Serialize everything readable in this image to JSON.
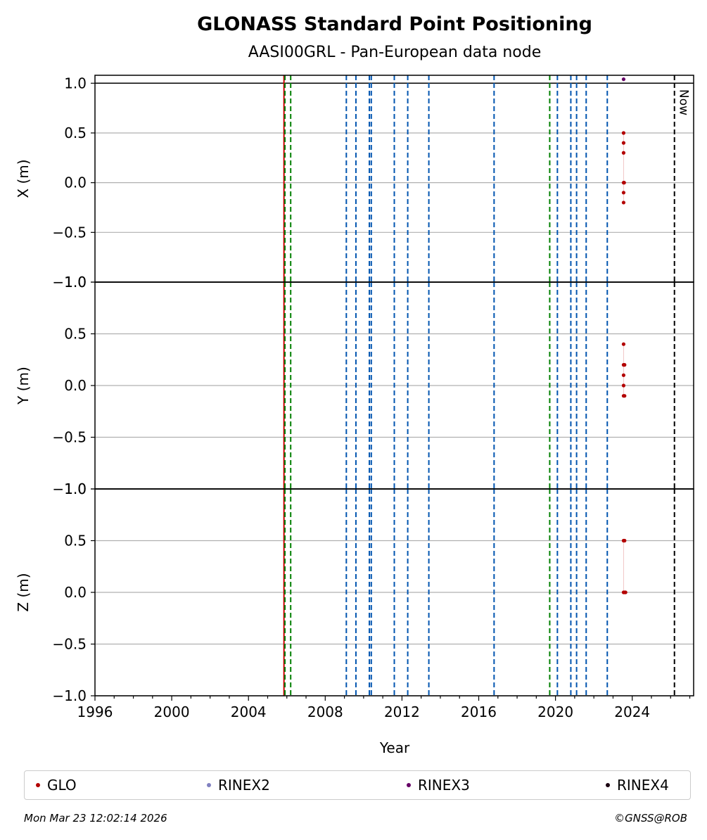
{
  "chart_data": {
    "type": "scatter",
    "title": "GLONASS Standard Point Positioning",
    "subtitle": "AASI00GRL - Pan-European data node",
    "xlabel": "Year",
    "xlim": [
      1996,
      2027.2
    ],
    "x_ticks": [
      "1996",
      "2000",
      "2004",
      "2008",
      "2012",
      "2016",
      "2020",
      "2024"
    ],
    "panels": [
      {
        "ylabel": "X (m)",
        "ylim": [
          -1.0,
          1.08
        ],
        "y_ticks": [
          "1.0",
          "0.5",
          "0.0",
          "−0.5",
          "−1.0"
        ],
        "series": [
          {
            "name": "GLO",
            "points": [
              [
                2023.55,
                0.5
              ],
              [
                2023.55,
                0.4
              ],
              [
                2023.55,
                0.3
              ],
              [
                2023.55,
                0.0
              ],
              [
                2023.58,
                0.0
              ],
              [
                2023.55,
                -0.1
              ],
              [
                2023.55,
                -0.2
              ]
            ]
          },
          {
            "name": "RINEX3",
            "points": [
              [
                2023.55,
                1.04
              ]
            ]
          }
        ]
      },
      {
        "ylabel": "Y (m)",
        "ylim": [
          -1.0,
          1.0
        ],
        "y_ticks": [
          "1.0",
          "0.5",
          "0.0",
          "−0.5",
          "−1.0"
        ],
        "series": [
          {
            "name": "GLO",
            "points": [
              [
                2023.55,
                0.4
              ],
              [
                2023.55,
                0.2
              ],
              [
                2023.6,
                0.2
              ],
              [
                2023.55,
                0.1
              ],
              [
                2023.55,
                0.0
              ],
              [
                2023.55,
                -0.1
              ],
              [
                2023.6,
                -0.1
              ]
            ]
          }
        ]
      },
      {
        "ylabel": "Z (m)",
        "ylim": [
          -1.0,
          1.0
        ],
        "y_ticks": [
          "1.0",
          "0.5",
          "0.0",
          "−0.5",
          "−1.0"
        ],
        "series": [
          {
            "name": "GLO",
            "points": [
              [
                2023.55,
                0.5
              ],
              [
                2023.6,
                0.5
              ],
              [
                2023.55,
                0.0
              ],
              [
                2023.6,
                0.0
              ],
              [
                2023.65,
                0.0
              ]
            ]
          }
        ]
      }
    ],
    "event_lines": [
      {
        "x": 2005.85,
        "color": "#cc0000",
        "style": "solid"
      },
      {
        "x": 2005.9,
        "color": "#008000",
        "style": "dashed"
      },
      {
        "x": 2006.2,
        "color": "#008000",
        "style": "dashed"
      },
      {
        "x": 2009.1,
        "color": "#0055b0",
        "style": "dashed"
      },
      {
        "x": 2009.6,
        "color": "#0055b0",
        "style": "dashed"
      },
      {
        "x": 2010.3,
        "color": "#0055b0",
        "style": "dashed"
      },
      {
        "x": 2010.4,
        "color": "#0055b0",
        "style": "dashed"
      },
      {
        "x": 2011.6,
        "color": "#0055b0",
        "style": "dashed"
      },
      {
        "x": 2012.3,
        "color": "#0055b0",
        "style": "dashed"
      },
      {
        "x": 2013.4,
        "color": "#0055b0",
        "style": "dashed"
      },
      {
        "x": 2016.8,
        "color": "#0055b0",
        "style": "dashed"
      },
      {
        "x": 2019.7,
        "color": "#008000",
        "style": "dashed"
      },
      {
        "x": 2020.1,
        "color": "#0055b0",
        "style": "dashed"
      },
      {
        "x": 2020.8,
        "color": "#0055b0",
        "style": "dashed"
      },
      {
        "x": 2021.1,
        "color": "#0055b0",
        "style": "dashed"
      },
      {
        "x": 2021.6,
        "color": "#0055b0",
        "style": "dashed"
      },
      {
        "x": 2022.7,
        "color": "#0055b0",
        "style": "dashed"
      },
      {
        "x": 2026.2,
        "color": "#000000",
        "style": "dashed"
      }
    ],
    "now_label": "Now",
    "legend": [
      {
        "name": "GLO",
        "color": "#b30000"
      },
      {
        "name": "RINEX2",
        "color": "#8080c0"
      },
      {
        "name": "RINEX3",
        "color": "#660066"
      },
      {
        "name": "RINEX4",
        "color": "#1a0010"
      }
    ],
    "legend_position": "bottom"
  },
  "footer": {
    "timestamp": "Mon Mar 23 12:02:14 2026",
    "copyright": "©GNSS@ROB"
  }
}
